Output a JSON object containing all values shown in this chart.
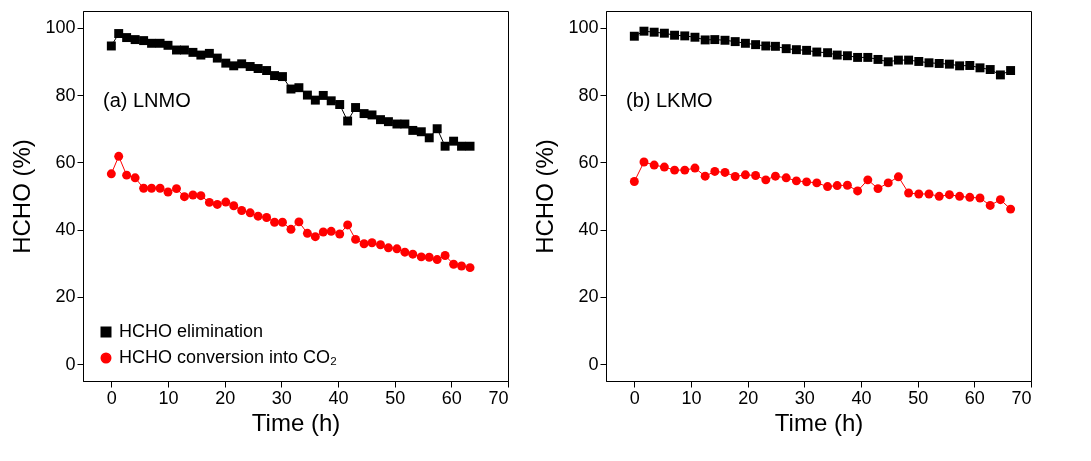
{
  "chart_data": [
    {
      "type": "line",
      "xlabel": "Time (h)",
      "ylabel": "HCHO (%)",
      "annotations": [
        "(a) LNMO"
      ],
      "xlim": [
        -5,
        70
      ],
      "xticks": [
        0,
        10,
        20,
        30,
        40,
        50,
        60,
        70
      ],
      "ylim": [
        -5,
        105
      ],
      "yticks": [
        0,
        20,
        40,
        60,
        80,
        100
      ],
      "grid": false,
      "legend": "bottom left",
      "series": [
        {
          "name": "HCHO elimination",
          "color": "#000000",
          "marker": "square",
          "x": [
            0,
            1.3,
            2.7,
            4.2,
            5.7,
            7.1,
            8.6,
            10.0,
            11.5,
            12.9,
            14.4,
            15.8,
            17.3,
            18.7,
            20.2,
            21.6,
            23.0,
            24.5,
            25.9,
            27.4,
            28.8,
            30.2,
            31.7,
            33.1,
            34.6,
            36.0,
            37.4,
            38.8,
            40.3,
            41.7,
            43.1,
            44.6,
            46.0,
            47.5,
            48.9,
            50.4,
            51.8,
            53.2,
            54.7,
            56.1,
            57.5,
            58.9,
            60.4,
            61.8,
            63.3
          ],
          "values": [
            94.6,
            98.3,
            97.1,
            96.5,
            96.2,
            95.4,
            95.4,
            94.8,
            93.4,
            93.4,
            92.7,
            91.9,
            92.4,
            91.0,
            89.5,
            88.7,
            89.3,
            88.5,
            87.9,
            87.3,
            85.8,
            85.5,
            81.8,
            82.2,
            80.0,
            78.5,
            79.9,
            78.3,
            77.2,
            72.3,
            76.3,
            74.5,
            74.1,
            72.7,
            72.1,
            71.4,
            71.4,
            69.5,
            69.1,
            67.3,
            70.0,
            64.8,
            66.3,
            64.8,
            64.8
          ]
        },
        {
          "name": "HCHO conversion into CO₂",
          "color": "#ff0000",
          "marker": "circle",
          "x": [
            0,
            1.3,
            2.7,
            4.2,
            5.7,
            7.1,
            8.6,
            10.0,
            11.5,
            12.9,
            14.4,
            15.8,
            17.3,
            18.7,
            20.2,
            21.6,
            23.0,
            24.5,
            25.9,
            27.4,
            28.8,
            30.2,
            31.7,
            33.1,
            34.6,
            36.0,
            37.4,
            38.8,
            40.3,
            41.7,
            43.1,
            44.6,
            46.0,
            47.5,
            48.9,
            50.4,
            51.8,
            53.2,
            54.7,
            56.1,
            57.5,
            58.9,
            60.4,
            61.8,
            63.3
          ],
          "values": [
            56.6,
            61.8,
            56.2,
            55.4,
            52.3,
            52.3,
            52.3,
            51.2,
            52.2,
            49.8,
            50.3,
            50.1,
            48.1,
            47.5,
            48.2,
            47.1,
            45.7,
            45.0,
            44.0,
            43.6,
            42.2,
            42.2,
            40.1,
            42.3,
            38.9,
            37.9,
            39.3,
            39.5,
            38.7,
            41.4,
            37.1,
            35.8,
            36.1,
            35.5,
            34.6,
            34.3,
            33.3,
            32.7,
            31.9,
            31.8,
            31.1,
            32.3,
            29.7,
            29.2,
            28.7
          ]
        }
      ]
    },
    {
      "type": "line",
      "xlabel": "Time (h)",
      "ylabel": "HCHO (%)",
      "annotations": [
        "(b) LKMO"
      ],
      "xlim": [
        -5,
        70
      ],
      "xticks": [
        0,
        10,
        20,
        30,
        40,
        50,
        60,
        70
      ],
      "ylim": [
        -5,
        105
      ],
      "yticks": [
        0,
        20,
        40,
        60,
        80,
        100
      ],
      "grid": false,
      "legend": "bottom left",
      "series": [
        {
          "name": "HCHO elimination",
          "color": "#000000",
          "marker": "square",
          "x": [
            0,
            1.7,
            3.5,
            5.3,
            7.1,
            8.9,
            10.7,
            12.5,
            14.2,
            16.0,
            17.8,
            19.6,
            21.4,
            23.2,
            24.9,
            26.8,
            28.6,
            30.4,
            32.2,
            34.1,
            35.8,
            37.6,
            39.4,
            41.2,
            43.0,
            44.8,
            46.6,
            48.4,
            50.2,
            52.0,
            53.8,
            55.6,
            57.4,
            59.2,
            61.0,
            62.8,
            64.6,
            66.4
          ],
          "values": [
            97.5,
            99.0,
            98.7,
            98.4,
            97.8,
            97.6,
            97.2,
            96.4,
            96.5,
            96.3,
            95.9,
            95.4,
            95.0,
            94.6,
            94.5,
            93.8,
            93.5,
            93.3,
            92.8,
            92.6,
            91.9,
            91.7,
            91.2,
            91.2,
            90.6,
            89.9,
            90.4,
            90.4,
            90.0,
            89.6,
            89.4,
            89.2,
            88.7,
            88.8,
            88.1,
            87.6,
            86.0,
            87.3
          ]
        },
        {
          "name": "HCHO conversion into CO₂",
          "color": "#ff0000",
          "marker": "circle",
          "x": [
            0,
            1.7,
            3.5,
            5.3,
            7.1,
            8.9,
            10.7,
            12.5,
            14.2,
            16.0,
            17.8,
            19.6,
            21.4,
            23.2,
            24.9,
            26.8,
            28.6,
            30.4,
            32.2,
            34.1,
            35.8,
            37.6,
            39.4,
            41.2,
            43.0,
            44.8,
            46.6,
            48.4,
            50.2,
            52.0,
            53.8,
            55.6,
            57.4,
            59.2,
            61.0,
            62.8,
            64.6,
            66.4
          ],
          "values": [
            54.3,
            60.1,
            59.2,
            58.6,
            57.7,
            57.7,
            58.3,
            55.9,
            57.3,
            57.0,
            55.8,
            56.3,
            56.1,
            54.8,
            55.9,
            55.4,
            54.5,
            54.2,
            53.9,
            52.8,
            53.1,
            53.2,
            51.5,
            54.8,
            52.2,
            53.9,
            55.7,
            50.9,
            50.6,
            50.6,
            49.9,
            50.4,
            49.9,
            49.6,
            49.4,
            47.2,
            48.9,
            46.1
          ]
        }
      ]
    }
  ]
}
